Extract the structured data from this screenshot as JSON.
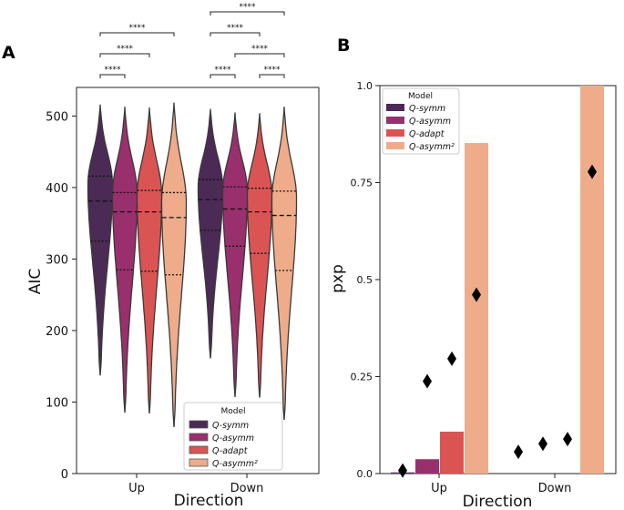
{
  "colors": [
    "#4b2a56",
    "#9a2f6d",
    "#db5454",
    "#eeac8b"
  ],
  "chart_data": [
    {
      "panel_label": "A",
      "type": "violin",
      "xlabel": "Direction",
      "ylabel": "AIC",
      "categories": [
        "Up",
        "Down"
      ],
      "ylim": [
        0,
        540
      ],
      "yticks": [
        0,
        100,
        200,
        300,
        400,
        500
      ],
      "legend": {
        "title": "Model",
        "position": "lower-right",
        "entries": [
          "Q-symm",
          "Q-asymm",
          "Q-adapt",
          "Q-asymm²"
        ]
      },
      "series": [
        {
          "name": "Q-symm",
          "distributions": [
            {
              "min": 138,
              "q1": 325,
              "median": 381,
              "q3": 416,
              "max": 516,
              "mode": 405
            },
            {
              "min": 162,
              "q1": 340,
              "median": 383,
              "q3": 411,
              "max": 510,
              "mode": 400
            }
          ]
        },
        {
          "name": "Q-asymm",
          "distributions": [
            {
              "min": 86,
              "q1": 285,
              "median": 366,
              "q3": 393,
              "max": 513,
              "mode": 392
            },
            {
              "min": 108,
              "q1": 318,
              "median": 370,
              "q3": 401,
              "max": 505,
              "mode": 395
            }
          ]
        },
        {
          "name": "Q-adapt",
          "distributions": [
            {
              "min": 85,
              "q1": 283,
              "median": 366,
              "q3": 396,
              "max": 512,
              "mode": 390
            },
            {
              "min": 107,
              "q1": 308,
              "median": 366,
              "q3": 399,
              "max": 504,
              "mode": 390
            }
          ]
        },
        {
          "name": "Q-asymm²",
          "distributions": [
            {
              "min": 66,
              "q1": 278,
              "median": 358,
              "q3": 393,
              "max": 519,
              "mode": 380
            },
            {
              "min": 76,
              "q1": 284,
              "median": 361,
              "q3": 395,
              "max": 513,
              "mode": 385
            }
          ]
        }
      ],
      "significance": [
        {
          "category": "Up",
          "from": 0,
          "to": 1,
          "level": 1,
          "label": "****"
        },
        {
          "category": "Up",
          "from": 0,
          "to": 2,
          "level": 2,
          "label": "****"
        },
        {
          "category": "Up",
          "from": 0,
          "to": 3,
          "level": 3,
          "label": "****"
        },
        {
          "category": "Down",
          "from": 0,
          "to": 1,
          "level": 1,
          "label": "****"
        },
        {
          "category": "Down",
          "from": 2,
          "to": 3,
          "level": 1,
          "label": "****"
        },
        {
          "category": "Down",
          "from": 1,
          "to": 3,
          "level": 2,
          "label": "****"
        },
        {
          "category": "Down",
          "from": 0,
          "to": 2,
          "level": 3,
          "label": "****"
        },
        {
          "category": "Down",
          "from": 0,
          "to": 3,
          "level": 4,
          "label": "****"
        }
      ]
    },
    {
      "panel_label": "B",
      "type": "bar",
      "xlabel": "Direction",
      "ylabel": "pxp",
      "categories": [
        "Up",
        "Down"
      ],
      "ylim": [
        0,
        1.0
      ],
      "yticks": [
        0,
        0.25,
        0.5,
        0.75,
        1.0
      ],
      "ytick_labels": [
        "0.0",
        "0.25",
        "0.5",
        "0.75",
        "1.0"
      ],
      "legend": {
        "title": "Model",
        "position": "top-left",
        "entries": [
          "Q-symm",
          "Q-asymm",
          "Q-adapt",
          "Q-asymm²"
        ]
      },
      "series": [
        {
          "name": "Q-symm",
          "values": [
            0.003,
            0.0
          ],
          "markers": [
            0.008,
            0.056
          ]
        },
        {
          "name": "Q-asymm",
          "values": [
            0.037,
            0.0
          ],
          "markers": [
            0.238,
            0.077
          ]
        },
        {
          "name": "Q-adapt",
          "values": [
            0.108,
            0.0
          ],
          "markers": [
            0.296,
            0.089
          ]
        },
        {
          "name": "Q-asymm²",
          "values": [
            0.852,
            1.0
          ],
          "markers": [
            0.461,
            0.778
          ]
        }
      ]
    }
  ]
}
